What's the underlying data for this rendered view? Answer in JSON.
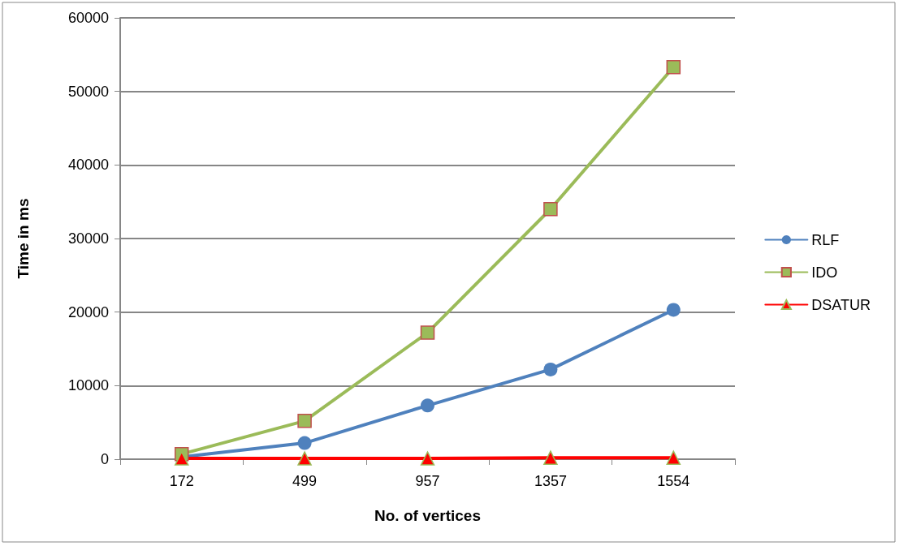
{
  "chart_data": {
    "type": "line",
    "xlabel": "No. of vertices",
    "ylabel": "Time in ms",
    "categories": [
      "172",
      "499",
      "957",
      "1357",
      "1554"
    ],
    "series": [
      {
        "name": "RLF",
        "color": "#4f81bd",
        "marker": "circle",
        "values": [
          300,
          2200,
          7300,
          12200,
          20300
        ]
      },
      {
        "name": "IDO",
        "color": "#9bbb59",
        "marker": "square",
        "values": [
          700,
          5200,
          17200,
          34000,
          53300
        ]
      },
      {
        "name": "DSATUR",
        "color": "#ff0000",
        "marker": "triangle",
        "values": [
          100,
          100,
          100,
          200,
          200
        ]
      }
    ],
    "ylim": [
      0,
      60000
    ],
    "yticks": [
      0,
      10000,
      20000,
      30000,
      40000,
      50000,
      60000
    ],
    "grid": "y",
    "legend": "right",
    "line_style": "solid"
  }
}
